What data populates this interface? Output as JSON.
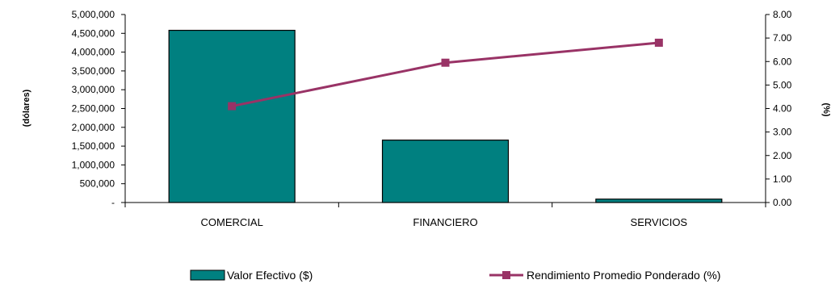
{
  "chart_data": {
    "type": "bar+line",
    "categories": [
      "COMERCIAL",
      "FINANCIERO",
      "SERVICIOS"
    ],
    "series": [
      {
        "name": "Valor Efectivo ($)",
        "type": "bar",
        "axis": "left",
        "values": [
          4580000,
          1660000,
          90000
        ],
        "color": "#008080"
      },
      {
        "name": "Rendimiento Promedio Ponderado (%)",
        "type": "line",
        "axis": "right",
        "values": [
          4.1,
          5.95,
          6.8
        ],
        "color": "#993366"
      }
    ],
    "y_left": {
      "label": "(dólares)",
      "ylim": [
        0,
        5000000
      ],
      "ticks": [
        0,
        500000,
        1000000,
        1500000,
        2000000,
        2500000,
        3000000,
        3500000,
        4000000,
        4500000,
        5000000
      ],
      "tick_labels": [
        "-",
        "500,000",
        "1,000,000",
        "1,500,000",
        "2,000,000",
        "2,500,000",
        "3,000,000",
        "3,500,000",
        "4,000,000",
        "4,500,000",
        "5,000,000"
      ]
    },
    "y_right": {
      "label": "(%)",
      "ylim": [
        0,
        8
      ],
      "ticks": [
        0,
        1,
        2,
        3,
        4,
        5,
        6,
        7,
        8
      ],
      "tick_labels": [
        "0.00",
        "1.00",
        "2.00",
        "3.00",
        "4.00",
        "5.00",
        "6.00",
        "7.00",
        "8.00"
      ]
    },
    "grid": false,
    "legend_position": "bottom"
  }
}
